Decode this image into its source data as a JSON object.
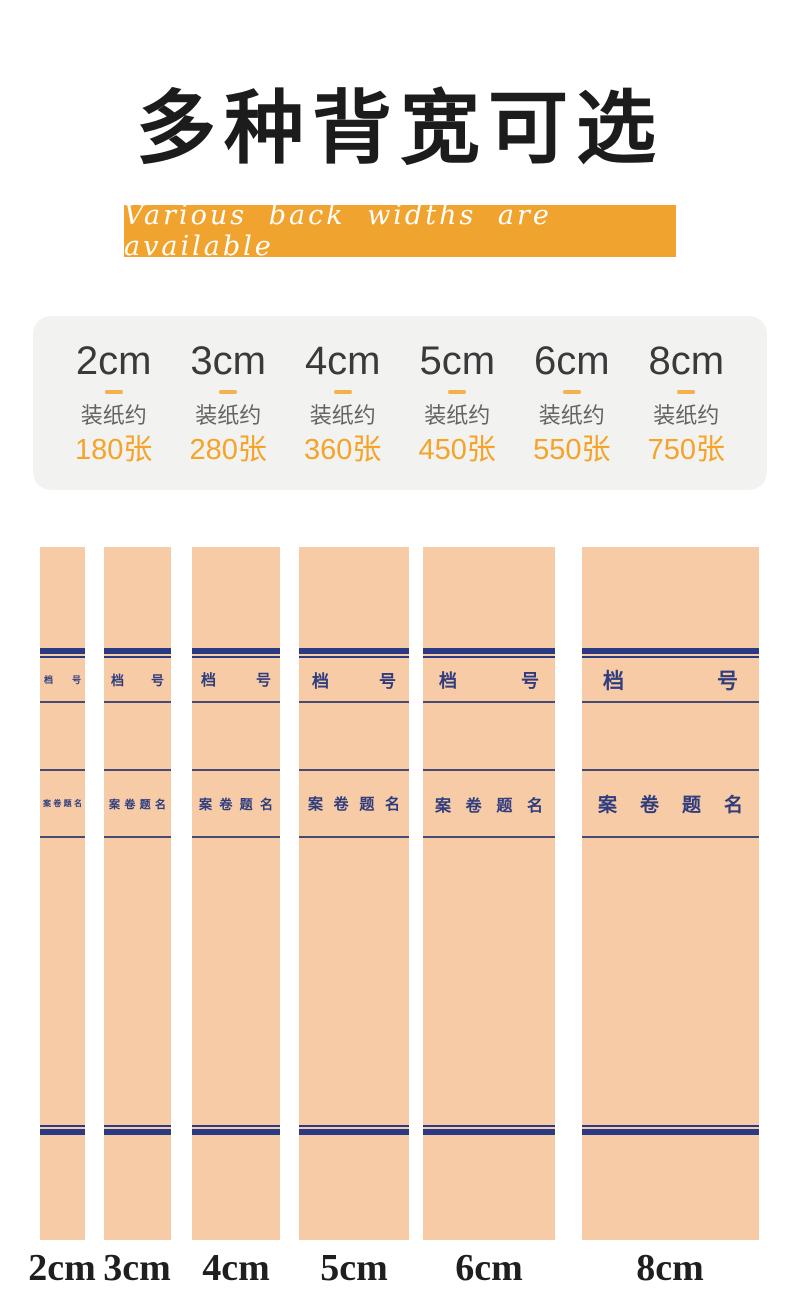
{
  "header": {
    "title": "多种背宽可选",
    "subtitle": "Various back widths are available"
  },
  "colors": {
    "banner_orange": "#F0A42F",
    "accent_orange": "#F5A329",
    "card_bg": "#F2F2F1",
    "paper_kraft": "#F6CBA6",
    "rule_navy": "#2B3A84",
    "spine_text_navy": "#2F3D7E"
  },
  "capacity_card": {
    "note_label": "装纸约",
    "columns": [
      {
        "size": "2cm",
        "capacity": "180张"
      },
      {
        "size": "3cm",
        "capacity": "280张"
      },
      {
        "size": "4cm",
        "capacity": "360张"
      },
      {
        "size": "5cm",
        "capacity": "450张"
      },
      {
        "size": "6cm",
        "capacity": "550张"
      },
      {
        "size": "8cm",
        "capacity": "750张"
      }
    ]
  },
  "spines": {
    "file_number_label": [
      "档",
      "号"
    ],
    "case_title_label": [
      "案",
      "卷",
      "题",
      "名"
    ],
    "sizes": [
      "2cm",
      "3cm",
      "4cm",
      "5cm",
      "6cm",
      "8cm"
    ]
  }
}
